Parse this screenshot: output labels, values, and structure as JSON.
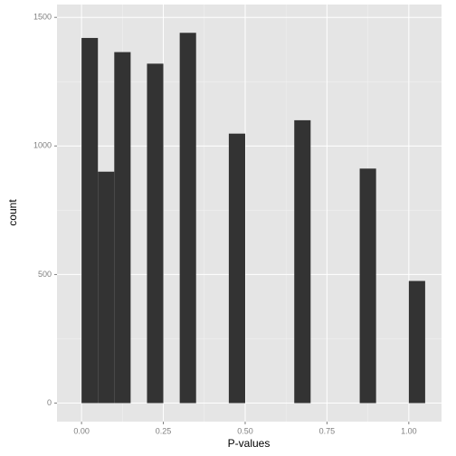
{
  "chart_data": {
    "type": "histogram",
    "x_label": "P-values",
    "y_label": "count",
    "bins": [
      0,
      0.05,
      0.1,
      0.15,
      0.2,
      0.25,
      0.3,
      0.35,
      0.4,
      0.45,
      0.5,
      0.55,
      0.6,
      0.65,
      0.7,
      0.75,
      0.8,
      0.85,
      0.9,
      0.95,
      1,
      1.05
    ],
    "values": [
      1420,
      900,
      1365,
      0,
      1320,
      0,
      1440,
      0,
      0,
      1048,
      0,
      0,
      0,
      1100,
      0,
      0,
      0,
      912,
      0,
      0,
      475
    ],
    "color": "#333333",
    "xlim": [
      -0.075,
      1.1
    ],
    "xticks": [
      {
        "value": 0,
        "label": "0.00"
      },
      {
        "value": 0.25,
        "label": "0.25"
      },
      {
        "value": 0.5,
        "label": "0.50"
      },
      {
        "value": 0.75,
        "label": "0.75"
      },
      {
        "value": 1,
        "label": "1.00"
      }
    ],
    "ylim": [
      -72,
      1550
    ],
    "yticks": [
      0,
      500,
      1000,
      1500
    ],
    "grid": true
  }
}
